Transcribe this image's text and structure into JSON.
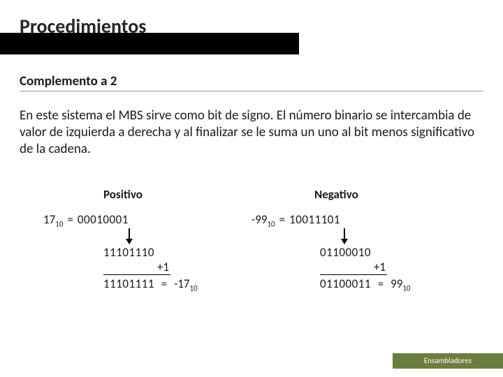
{
  "colors": {
    "title_bar": "#000000",
    "footer_bar": "#6b7e3d",
    "text": "#1a1a1a",
    "underline": "#9a9a9a",
    "background": "#ffffff"
  },
  "typography": {
    "title_fontsize": 28,
    "subtitle_fontsize": 19,
    "body_fontsize": 19,
    "example_fontsize": 17,
    "footer_fontsize": 11
  },
  "title": "Procedimientos",
  "subtitle": "Complemento a 2",
  "paragraph": "En este sistema el MBS sirve como bit de signo. El número binario se intercambia de valor de izquierda a derecha  y al finalizar se le suma  un uno al bit menos significativo de la cadena.",
  "columns": {
    "left_header": "Positivo",
    "right_header": "Negativo"
  },
  "left_example": {
    "decimal_label": "17",
    "decimal_sub": "10",
    "eq": "=",
    "binary": "00010001",
    "inverted": "11101110",
    "plus_one": "+1",
    "result_bin": "11101111",
    "result_eq": "=",
    "result_dec_label": "-17",
    "result_dec_sub": "10"
  },
  "right_example": {
    "decimal_label": "-99",
    "decimal_sub": "10",
    "eq": "=",
    "binary": "10011101",
    "inverted": "01100010",
    "plus_one": "+1",
    "result_bin": "01100011",
    "result_eq": "=",
    "result_dec_label": "99",
    "result_dec_sub": "10"
  },
  "footer": "Ensambladores"
}
